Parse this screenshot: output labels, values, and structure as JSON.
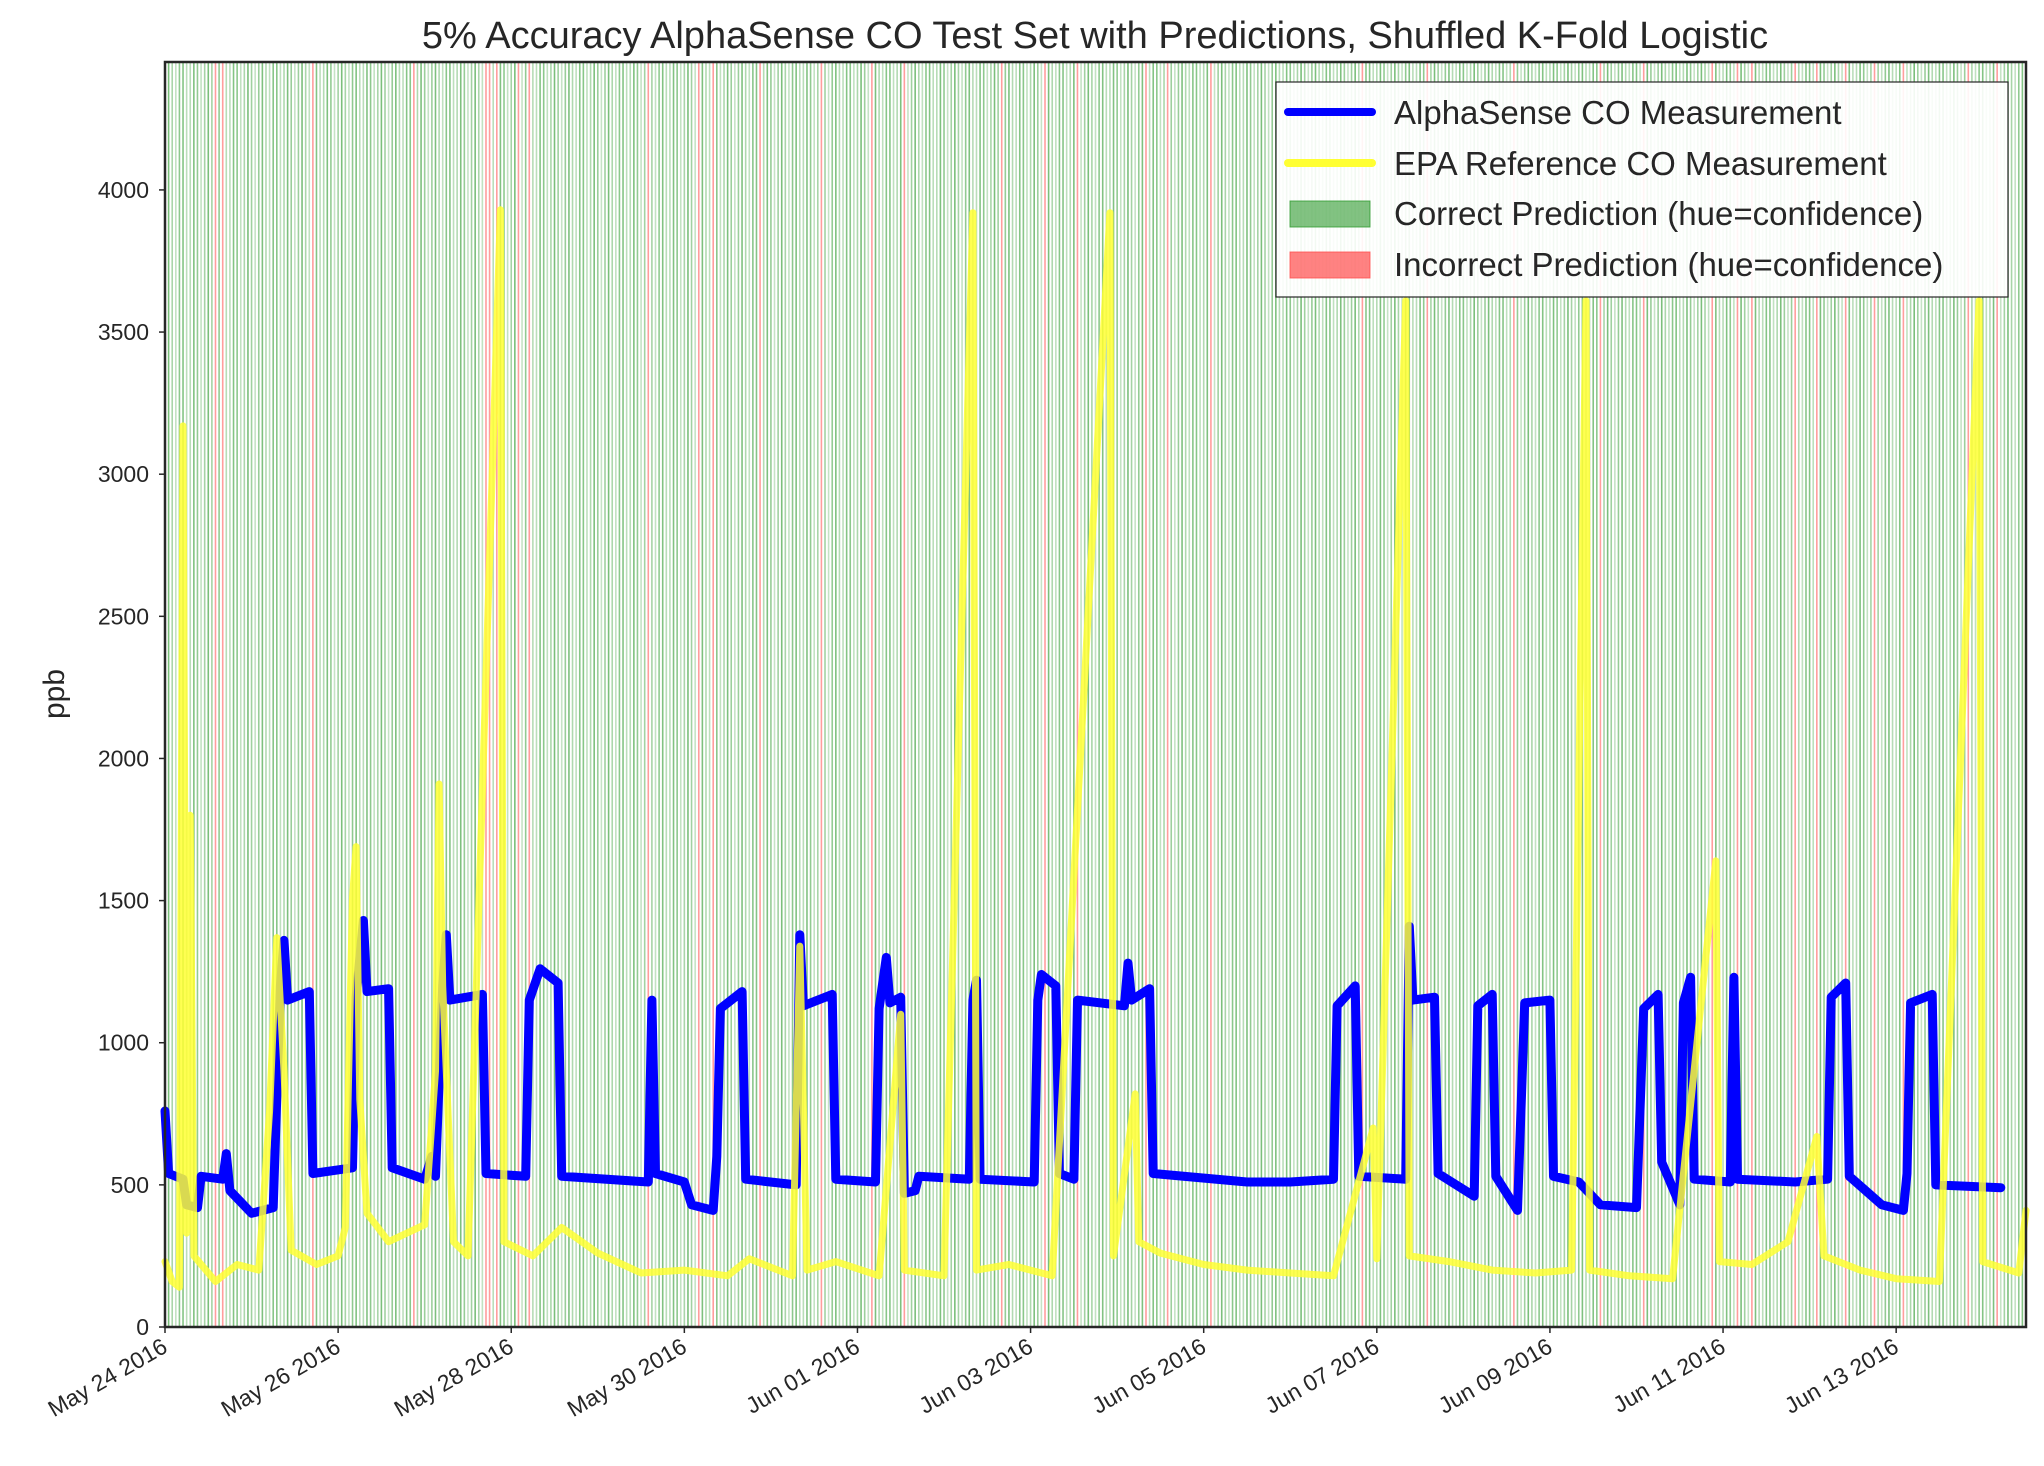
{
  "chart_data": {
    "type": "line",
    "title": "5% Accuracy AlphaSense CO Test Set with Predictions, Shuffled K-Fold Logistic",
    "xlabel": "",
    "ylabel": "ppb",
    "x_range": [
      "2016-05-24",
      "2016-06-14T12:00"
    ],
    "ylim": [
      0,
      4450
    ],
    "y_ticks": [
      0,
      500,
      1000,
      1500,
      2000,
      2500,
      3000,
      3500,
      4000
    ],
    "x_ticks": [
      {
        "date": "2016-05-24",
        "label": "May 24 2016"
      },
      {
        "date": "2016-05-26",
        "label": "May 26 2016"
      },
      {
        "date": "2016-05-28",
        "label": "May 28 2016"
      },
      {
        "date": "2016-05-30",
        "label": "May 30 2016"
      },
      {
        "date": "2016-06-01",
        "label": "Jun 01 2016"
      },
      {
        "date": "2016-06-03",
        "label": "Jun 03 2016"
      },
      {
        "date": "2016-06-05",
        "label": "Jun 05 2016"
      },
      {
        "date": "2016-06-07",
        "label": "Jun 07 2016"
      },
      {
        "date": "2016-06-09",
        "label": "Jun 09 2016"
      },
      {
        "date": "2016-06-11",
        "label": "Jun 11 2016"
      },
      {
        "date": "2016-06-13",
        "label": "Jun 13 2016"
      }
    ],
    "grid": false,
    "legend_position": "top-right",
    "series": [
      {
        "name": "AlphaSense CO Measurement",
        "color": "#0000ff",
        "points": [
          [
            "2016-05-24T00:00",
            760
          ],
          [
            "2016-05-24T01:00",
            540
          ],
          [
            "2016-05-24T05:00",
            520
          ],
          [
            "2016-05-24T06:00",
            430
          ],
          [
            "2016-05-24T09:00",
            420
          ],
          [
            "2016-05-24T10:00",
            530
          ],
          [
            "2016-05-24T16:00",
            520
          ],
          [
            "2016-05-24T17:00",
            610
          ],
          [
            "2016-05-24T18:00",
            480
          ],
          [
            "2016-05-25T00:00",
            400
          ],
          [
            "2016-05-25T06:00",
            420
          ],
          [
            "2016-05-25T08:00",
            1200
          ],
          [
            "2016-05-25T09:00",
            1360
          ],
          [
            "2016-05-25T10:00",
            1150
          ],
          [
            "2016-05-25T16:00",
            1180
          ],
          [
            "2016-05-25T17:00",
            540
          ],
          [
            "2016-05-26T04:00",
            560
          ],
          [
            "2016-05-26T05:00",
            1160
          ],
          [
            "2016-05-26T07:00",
            1430
          ],
          [
            "2016-05-26T08:00",
            1180
          ],
          [
            "2016-05-26T14:00",
            1190
          ],
          [
            "2016-05-26T15:00",
            560
          ],
          [
            "2016-05-27T00:00",
            520
          ],
          [
            "2016-05-27T02:00",
            600
          ],
          [
            "2016-05-27T03:00",
            530
          ],
          [
            "2016-05-27T05:00",
            1200
          ],
          [
            "2016-05-27T06:00",
            1380
          ],
          [
            "2016-05-27T07:00",
            1150
          ],
          [
            "2016-05-27T16:00",
            1170
          ],
          [
            "2016-05-27T17:00",
            540
          ],
          [
            "2016-05-28T04:00",
            530
          ],
          [
            "2016-05-28T05:00",
            1150
          ],
          [
            "2016-05-28T08:00",
            1260
          ],
          [
            "2016-05-28T13:00",
            1210
          ],
          [
            "2016-05-28T14:00",
            530
          ],
          [
            "2016-05-29T14:00",
            510
          ],
          [
            "2016-05-29T15:00",
            1150
          ],
          [
            "2016-05-29T16:00",
            540
          ],
          [
            "2016-05-30T00:00",
            510
          ],
          [
            "2016-05-30T02:00",
            430
          ],
          [
            "2016-05-30T08:00",
            410
          ],
          [
            "2016-05-30T09:00",
            600
          ],
          [
            "2016-05-30T10:00",
            1120
          ],
          [
            "2016-05-30T16:00",
            1180
          ],
          [
            "2016-05-30T17:00",
            520
          ],
          [
            "2016-05-31T07:00",
            500
          ],
          [
            "2016-05-31T08:00",
            1380
          ],
          [
            "2016-05-31T09:00",
            1130
          ],
          [
            "2016-05-31T17:00",
            1170
          ],
          [
            "2016-05-31T18:00",
            520
          ],
          [
            "2016-06-01T05:00",
            510
          ],
          [
            "2016-06-01T06:00",
            1120
          ],
          [
            "2016-06-01T08:00",
            1300
          ],
          [
            "2016-06-01T09:00",
            1140
          ],
          [
            "2016-06-01T12:00",
            1160
          ],
          [
            "2016-06-01T13:00",
            470
          ],
          [
            "2016-06-01T16:00",
            480
          ],
          [
            "2016-06-01T17:00",
            530
          ],
          [
            "2016-06-02T07:00",
            520
          ],
          [
            "2016-06-02T08:00",
            1150
          ],
          [
            "2016-06-02T09:00",
            1220
          ],
          [
            "2016-06-02T10:00",
            520
          ],
          [
            "2016-06-03T01:00",
            510
          ],
          [
            "2016-06-03T02:00",
            1150
          ],
          [
            "2016-06-03T03:00",
            1240
          ],
          [
            "2016-06-03T07:00",
            1200
          ],
          [
            "2016-06-03T08:00",
            540
          ],
          [
            "2016-06-03T12:00",
            520
          ],
          [
            "2016-06-03T13:00",
            1150
          ],
          [
            "2016-06-04T02:00",
            1130
          ],
          [
            "2016-06-04T03:00",
            1280
          ],
          [
            "2016-06-04T04:00",
            1150
          ],
          [
            "2016-06-04T09:00",
            1190
          ],
          [
            "2016-06-04T10:00",
            540
          ],
          [
            "2016-06-05T12:00",
            510
          ],
          [
            "2016-06-06T00:00",
            510
          ],
          [
            "2016-06-06T12:00",
            520
          ],
          [
            "2016-06-06T13:00",
            1130
          ],
          [
            "2016-06-06T18:00",
            1200
          ],
          [
            "2016-06-06T19:00",
            530
          ],
          [
            "2016-06-07T08:00",
            520
          ],
          [
            "2016-06-07T09:00",
            1410
          ],
          [
            "2016-06-07T10:00",
            1150
          ],
          [
            "2016-06-07T16:00",
            1160
          ],
          [
            "2016-06-07T17:00",
            540
          ],
          [
            "2016-06-08T03:00",
            460
          ],
          [
            "2016-06-08T04:00",
            1130
          ],
          [
            "2016-06-08T08:00",
            1170
          ],
          [
            "2016-06-08T09:00",
            530
          ],
          [
            "2016-06-08T15:00",
            410
          ],
          [
            "2016-06-08T17:00",
            1140
          ],
          [
            "2016-06-09T00:00",
            1150
          ],
          [
            "2016-06-09T01:00",
            530
          ],
          [
            "2016-06-09T08:00",
            510
          ],
          [
            "2016-06-09T14:00",
            430
          ],
          [
            "2016-06-10T00:00",
            420
          ],
          [
            "2016-06-10T02:00",
            1120
          ],
          [
            "2016-06-10T06:00",
            1170
          ],
          [
            "2016-06-10T07:00",
            580
          ],
          [
            "2016-06-10T12:00",
            430
          ],
          [
            "2016-06-10T13:00",
            1140
          ],
          [
            "2016-06-10T15:00",
            1230
          ],
          [
            "2016-06-10T16:00",
            520
          ],
          [
            "2016-06-11T02:00",
            510
          ],
          [
            "2016-06-11T03:00",
            1230
          ],
          [
            "2016-06-11T04:00",
            520
          ],
          [
            "2016-06-11T20:00",
            510
          ],
          [
            "2016-06-12T05:00",
            520
          ],
          [
            "2016-06-12T06:00",
            1160
          ],
          [
            "2016-06-12T10:00",
            1210
          ],
          [
            "2016-06-12T11:00",
            530
          ],
          [
            "2016-06-12T20:00",
            430
          ],
          [
            "2016-06-13T02:00",
            410
          ],
          [
            "2016-06-13T03:00",
            540
          ],
          [
            "2016-06-13T04:00",
            1140
          ],
          [
            "2016-06-13T10:00",
            1170
          ],
          [
            "2016-06-13T11:00",
            500
          ],
          [
            "2016-06-14T05:00",
            490
          ]
        ]
      },
      {
        "name": "EPA Reference CO Measurement",
        "color": "#ffff33",
        "points": [
          [
            "2016-05-24T00:00",
            230
          ],
          [
            "2016-05-24T02:00",
            160
          ],
          [
            "2016-05-24T04:00",
            140
          ],
          [
            "2016-05-24T05:00",
            3170
          ],
          [
            "2016-05-24T06:00",
            330
          ],
          [
            "2016-05-24T07:00",
            1800
          ],
          [
            "2016-05-24T08:00",
            250
          ],
          [
            "2016-05-24T14:00",
            160
          ],
          [
            "2016-05-24T20:00",
            220
          ],
          [
            "2016-05-25T02:00",
            200
          ],
          [
            "2016-05-25T05:00",
            760
          ],
          [
            "2016-05-25T07:00",
            1370
          ],
          [
            "2016-05-25T09:00",
            900
          ],
          [
            "2016-05-25T11:00",
            270
          ],
          [
            "2016-05-25T18:00",
            220
          ],
          [
            "2016-05-26T00:00",
            250
          ],
          [
            "2016-05-26T02:00",
            350
          ],
          [
            "2016-05-26T04:00",
            1510
          ],
          [
            "2016-05-26T05:00",
            1690
          ],
          [
            "2016-05-26T06:00",
            800
          ],
          [
            "2016-05-26T08:00",
            400
          ],
          [
            "2016-05-26T14:00",
            300
          ],
          [
            "2016-05-27T00:00",
            360
          ],
          [
            "2016-05-27T03:00",
            900
          ],
          [
            "2016-05-27T04:00",
            1910
          ],
          [
            "2016-05-27T05:00",
            1200
          ],
          [
            "2016-05-27T08:00",
            300
          ],
          [
            "2016-05-27T12:00",
            250
          ],
          [
            "2016-05-27T21:00",
            3930
          ],
          [
            "2016-05-27T22:00",
            300
          ],
          [
            "2016-05-28T06:00",
            250
          ],
          [
            "2016-05-28T14:00",
            350
          ],
          [
            "2016-05-29T00:00",
            260
          ],
          [
            "2016-05-29T12:00",
            190
          ],
          [
            "2016-05-30T00:00",
            200
          ],
          [
            "2016-05-30T12:00",
            180
          ],
          [
            "2016-05-30T18:00",
            240
          ],
          [
            "2016-05-31T06:00",
            180
          ],
          [
            "2016-05-31T08:00",
            1340
          ],
          [
            "2016-05-31T10:00",
            200
          ],
          [
            "2016-05-31T18:00",
            230
          ],
          [
            "2016-06-01T06:00",
            180
          ],
          [
            "2016-06-01T12:00",
            1100
          ],
          [
            "2016-06-01T13:00",
            200
          ],
          [
            "2016-06-02T00:00",
            180
          ],
          [
            "2016-06-02T08:00",
            3920
          ],
          [
            "2016-06-02T09:00",
            200
          ],
          [
            "2016-06-02T18:00",
            220
          ],
          [
            "2016-06-03T06:00",
            180
          ],
          [
            "2016-06-03T22:00",
            3920
          ],
          [
            "2016-06-03T23:00",
            250
          ],
          [
            "2016-06-04T05:00",
            820
          ],
          [
            "2016-06-04T06:00",
            300
          ],
          [
            "2016-06-04T12:00",
            260
          ],
          [
            "2016-06-05T00:00",
            220
          ],
          [
            "2016-06-05T12:00",
            200
          ],
          [
            "2016-06-06T00:00",
            190
          ],
          [
            "2016-06-06T12:00",
            180
          ],
          [
            "2016-06-06T23:00",
            700
          ],
          [
            "2016-06-07T00:00",
            240
          ],
          [
            "2016-06-07T08:00",
            3610
          ],
          [
            "2016-06-07T09:00",
            250
          ],
          [
            "2016-06-07T20:00",
            230
          ],
          [
            "2016-06-08T08:00",
            200
          ],
          [
            "2016-06-08T20:00",
            190
          ],
          [
            "2016-06-09T06:00",
            200
          ],
          [
            "2016-06-09T10:00",
            3610
          ],
          [
            "2016-06-09T11:00",
            200
          ],
          [
            "2016-06-09T22:00",
            180
          ],
          [
            "2016-06-10T10:00",
            170
          ],
          [
            "2016-06-10T22:00",
            1640
          ],
          [
            "2016-06-10T23:00",
            230
          ],
          [
            "2016-06-11T08:00",
            220
          ],
          [
            "2016-06-11T18:00",
            300
          ],
          [
            "2016-06-12T02:00",
            670
          ],
          [
            "2016-06-12T04:00",
            250
          ],
          [
            "2016-06-12T14:00",
            200
          ],
          [
            "2016-06-13T00:00",
            170
          ],
          [
            "2016-06-13T12:00",
            160
          ],
          [
            "2016-06-13T23:00",
            3610
          ],
          [
            "2016-06-14T00:00",
            230
          ],
          [
            "2016-06-14T10:00",
            190
          ],
          [
            "2016-06-14T12:00",
            410
          ]
        ]
      },
      {
        "name": "Correct Prediction (hue=confidence)",
        "color": "#2e9a2e",
        "kind": "vertical-span-band",
        "description_of_marks": "dense thin vertical bands covering most hours"
      },
      {
        "name": "Incorrect Prediction (hue=confidence)",
        "color": "#ff4d4d",
        "kind": "vertical-span-band",
        "times": [
          "2016-05-24T14:00",
          "2016-05-24T16:00",
          "2016-05-25T17:00",
          "2016-05-26T21:00",
          "2016-05-27T17:00",
          "2016-05-27T18:00",
          "2016-05-27T20:00",
          "2016-05-28T02:00",
          "2016-05-28T05:00",
          "2016-05-29T14:00",
          "2016-05-30T04:00",
          "2016-05-30T08:00",
          "2016-05-30T21:00",
          "2016-05-31T14:00",
          "2016-06-01T04:00",
          "2016-06-01T13:00",
          "2016-06-02T16:00",
          "2016-06-03T04:00",
          "2016-06-03T13:00",
          "2016-06-04T08:00",
          "2016-06-04T14:00",
          "2016-06-05T02:00",
          "2016-06-06T20:00",
          "2016-06-07T14:00",
          "2016-06-08T14:00",
          "2016-06-09T14:00",
          "2016-06-10T02:00",
          "2016-06-10T21:00",
          "2016-06-11T04:00",
          "2016-06-11T08:00",
          "2016-06-11T20:00",
          "2016-06-12T02:00",
          "2016-06-12T10:00",
          "2016-06-12T18:00",
          "2016-06-13T02:00",
          "2016-06-13T20:00",
          "2016-06-14T04:00"
        ]
      }
    ]
  }
}
